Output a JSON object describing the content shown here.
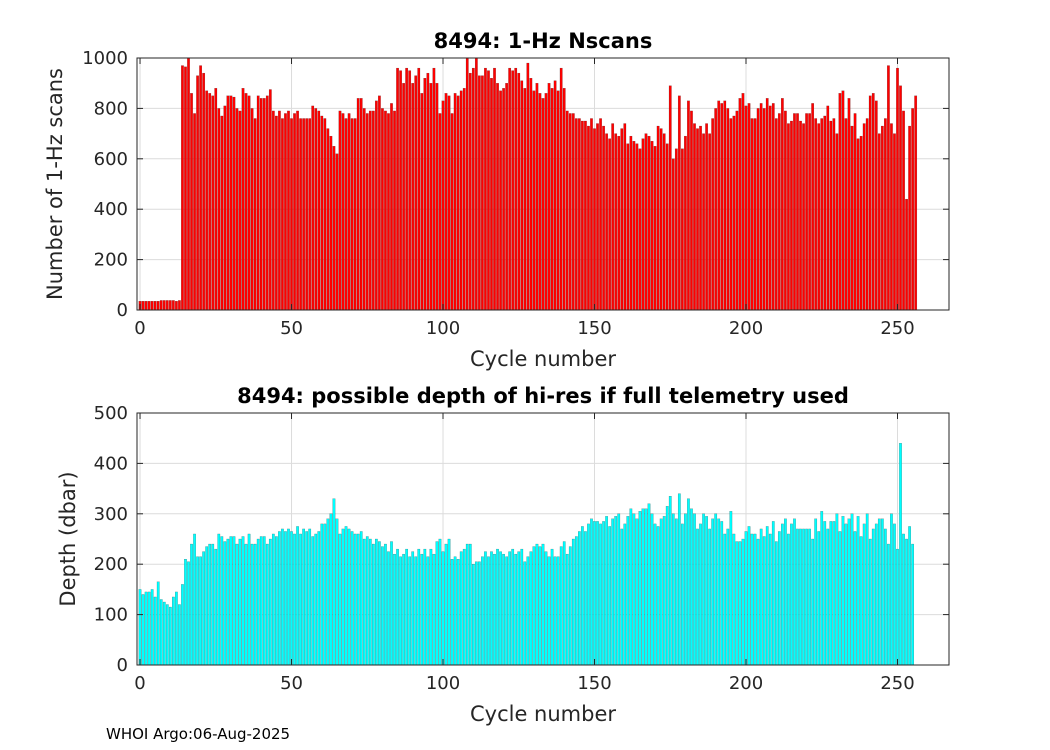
{
  "footer": "WHOI Argo:06-Aug-2025",
  "chart_data": [
    {
      "type": "bar",
      "title": "8494: 1-Hz Nscans",
      "xlabel": "Cycle number",
      "ylabel": "Number of 1-Hz scans",
      "xlim": [
        -1,
        267
      ],
      "ylim": [
        0,
        1000
      ],
      "xticks": [
        0,
        50,
        100,
        150,
        200,
        250
      ],
      "yticks": [
        0,
        200,
        400,
        600,
        800,
        1000
      ],
      "grid": true,
      "color": "#ff0000",
      "x_start": 0,
      "values": [
        35,
        35,
        35,
        35,
        35,
        35,
        35,
        38,
        38,
        38,
        38,
        38,
        35,
        38,
        970,
        965,
        1000,
        860,
        780,
        930,
        970,
        940,
        870,
        860,
        850,
        880,
        800,
        770,
        810,
        850,
        850,
        845,
        800,
        790,
        880,
        860,
        850,
        800,
        760,
        850,
        840,
        840,
        850,
        875,
        790,
        770,
        790,
        760,
        780,
        790,
        760,
        780,
        790,
        760,
        760,
        760,
        760,
        810,
        800,
        790,
        770,
        760,
        720,
        690,
        650,
        620,
        790,
        780,
        760,
        780,
        760,
        760,
        840,
        840,
        800,
        780,
        790,
        790,
        830,
        850,
        800,
        790,
        780,
        820,
        790,
        960,
        950,
        900,
        960,
        950,
        900,
        930,
        960,
        860,
        920,
        940,
        900,
        960,
        900,
        780,
        830,
        860,
        850,
        780,
        860,
        850,
        870,
        880,
        1000,
        940,
        960,
        1000,
        930,
        930,
        960,
        950,
        920,
        960,
        900,
        870,
        880,
        900,
        960,
        950,
        960,
        940,
        910,
        880,
        980,
        920,
        870,
        900,
        860,
        840,
        860,
        900,
        880,
        910,
        870,
        960,
        880,
        790,
        780,
        780,
        760,
        760,
        750,
        750,
        730,
        760,
        720,
        740,
        760,
        730,
        700,
        680,
        740,
        700,
        690,
        720,
        740,
        660,
        690,
        670,
        660,
        640,
        680,
        700,
        690,
        670,
        650,
        730,
        720,
        700,
        660,
        890,
        600,
        640,
        850,
        640,
        690,
        830,
        790,
        740,
        720,
        730,
        700,
        740,
        700,
        760,
        800,
        830,
        820,
        830,
        800,
        760,
        770,
        790,
        840,
        860,
        810,
        820,
        760,
        760,
        800,
        820,
        800,
        840,
        810,
        820,
        760,
        780,
        840,
        790,
        740,
        750,
        780,
        780,
        750,
        740,
        780,
        780,
        820,
        760,
        740,
        760,
        770,
        810,
        750,
        760,
        700,
        860,
        870,
        760,
        840,
        730,
        780,
        680,
        690,
        740,
        760,
        850,
        860,
        830,
        700,
        730,
        760,
        970,
        740,
        700,
        960,
        890,
        790,
        440,
        730,
        800,
        850
      ]
    },
    {
      "type": "bar",
      "title": "8494: possible depth of hi-res if full telemetry used",
      "xlabel": "Cycle number",
      "ylabel": "Depth (dbar)",
      "xlim": [
        -1,
        267
      ],
      "ylim": [
        0,
        500
      ],
      "xticks": [
        0,
        50,
        100,
        150,
        200,
        250
      ],
      "yticks": [
        0,
        100,
        200,
        300,
        400,
        500
      ],
      "grid": true,
      "color": "#00ffff",
      "x_start": 0,
      "values": [
        150,
        140,
        145,
        145,
        150,
        135,
        165,
        130,
        125,
        120,
        115,
        135,
        145,
        120,
        160,
        210,
        205,
        240,
        260,
        215,
        215,
        225,
        235,
        240,
        240,
        230,
        260,
        255,
        245,
        250,
        255,
        255,
        240,
        250,
        255,
        240,
        260,
        240,
        240,
        250,
        255,
        255,
        240,
        250,
        260,
        255,
        265,
        270,
        265,
        270,
        265,
        260,
        275,
        260,
        270,
        265,
        270,
        255,
        260,
        265,
        280,
        280,
        290,
        300,
        330,
        290,
        260,
        270,
        275,
        270,
        265,
        260,
        260,
        265,
        250,
        255,
        250,
        240,
        250,
        245,
        235,
        240,
        225,
        245,
        220,
        230,
        215,
        220,
        230,
        215,
        225,
        215,
        230,
        220,
        230,
        215,
        230,
        220,
        245,
        250,
        225,
        240,
        250,
        210,
        215,
        210,
        225,
        230,
        240,
        240,
        200,
        205,
        205,
        215,
        225,
        215,
        225,
        220,
        230,
        225,
        220,
        215,
        225,
        230,
        220,
        225,
        230,
        205,
        215,
        225,
        235,
        240,
        235,
        240,
        225,
        215,
        230,
        215,
        215,
        235,
        245,
        220,
        235,
        250,
        255,
        265,
        275,
        265,
        280,
        290,
        285,
        285,
        280,
        285,
        295,
        275,
        290,
        295,
        300,
        270,
        280,
        295,
        310,
        300,
        290,
        305,
        310,
        310,
        320,
        300,
        280,
        275,
        290,
        295,
        315,
        335,
        300,
        290,
        340,
        280,
        300,
        330,
        310,
        300,
        270,
        280,
        300,
        295,
        270,
        290,
        300,
        290,
        285,
        260,
        270,
        305,
        260,
        245,
        245,
        250,
        265,
        275,
        260,
        260,
        250,
        270,
        255,
        275,
        260,
        285,
        245,
        265,
        280,
        290,
        260,
        280,
        290,
        270,
        270,
        270,
        270,
        270,
        250,
        290,
        265,
        305,
        285,
        270,
        285,
        285,
        300,
        265,
        295,
        280,
        290,
        300,
        265,
        295,
        255,
        280,
        300,
        250,
        270,
        280,
        290,
        290,
        270,
        240,
        300,
        280,
        230,
        440,
        260,
        250,
        275,
        240
      ]
    }
  ]
}
